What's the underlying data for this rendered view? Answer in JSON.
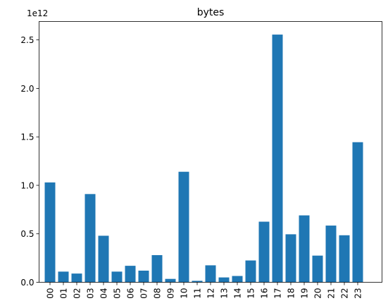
{
  "chart_data": {
    "type": "bar",
    "title": "bytes",
    "xlabel": "",
    "ylabel": "",
    "y_offset_label": "1e12",
    "y_scale": 1000000000000.0,
    "categories": [
      "00",
      "01",
      "02",
      "03",
      "04",
      "05",
      "06",
      "07",
      "08",
      "09",
      "10",
      "11",
      "12",
      "13",
      "14",
      "15",
      "16",
      "17",
      "18",
      "19",
      "20",
      "21",
      "22",
      "23"
    ],
    "values": [
      1030000000000.0,
      110000000000.0,
      90000000000.0,
      910000000000.0,
      480000000000.0,
      110000000000.0,
      170000000000.0,
      120000000000.0,
      280000000000.0,
      35000000000.0,
      1140000000000.0,
      15000000000.0,
      175000000000.0,
      50000000000.0,
      65000000000.0,
      225000000000.0,
      625000000000.0,
      2555000000000.0,
      495000000000.0,
      690000000000.0,
      275000000000.0,
      585000000000.0,
      485000000000.0,
      1445000000000.0
    ],
    "yticks": [
      0.0,
      0.5,
      1.0,
      1.5,
      2.0,
      2.5
    ],
    "ytick_labels": [
      "0.0",
      "0.5",
      "1.0",
      "1.5",
      "2.0",
      "2.5"
    ],
    "ylim": [
      0,
      2690000000000.0
    ],
    "bar_color": "#1f77b4",
    "grid": false,
    "legend": "none"
  }
}
